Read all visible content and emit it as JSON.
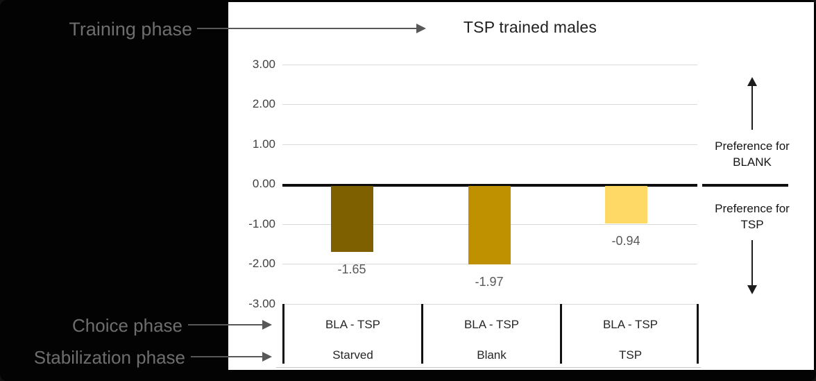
{
  "chart_data": {
    "type": "bar",
    "title": "TSP trained males",
    "categories": [
      "Starved",
      "Blank",
      "TSP"
    ],
    "choice_row": [
      "BLA - TSP",
      "BLA - TSP",
      "BLA - TSP"
    ],
    "values": [
      -1.65,
      -1.97,
      -0.94
    ],
    "data_labels": [
      "-1.65",
      "-1.97",
      "-0.94"
    ],
    "bar_colors": [
      "#7F6000",
      "#BF9000",
      "#FFD966"
    ],
    "ytick_labels": [
      "3.00",
      "2.00",
      "1.00",
      "0.00",
      "-1.00",
      "-2.00",
      "-3.00"
    ],
    "ylim": [
      -3,
      3
    ],
    "grid": true,
    "gridline_color": "#D9D9D9",
    "zero_line_color": "#0D0D0D",
    "legend": "none"
  },
  "left_annotations": {
    "training": "Training phase",
    "choice": "Choice phase",
    "stabilization": "Stabilization phase"
  },
  "right_annotations": {
    "blank": {
      "line1": "Preference for",
      "line2": "BLANK"
    },
    "tsp": {
      "line1": "Preference for",
      "line2": "TSP"
    }
  },
  "colors": {
    "frame_bg": "#030303",
    "chart_bg": "#FFFFFF",
    "annotation_text_gray": "#6E6E6E",
    "arrow_gray": "#585858",
    "data_label_gray": "#595959"
  }
}
